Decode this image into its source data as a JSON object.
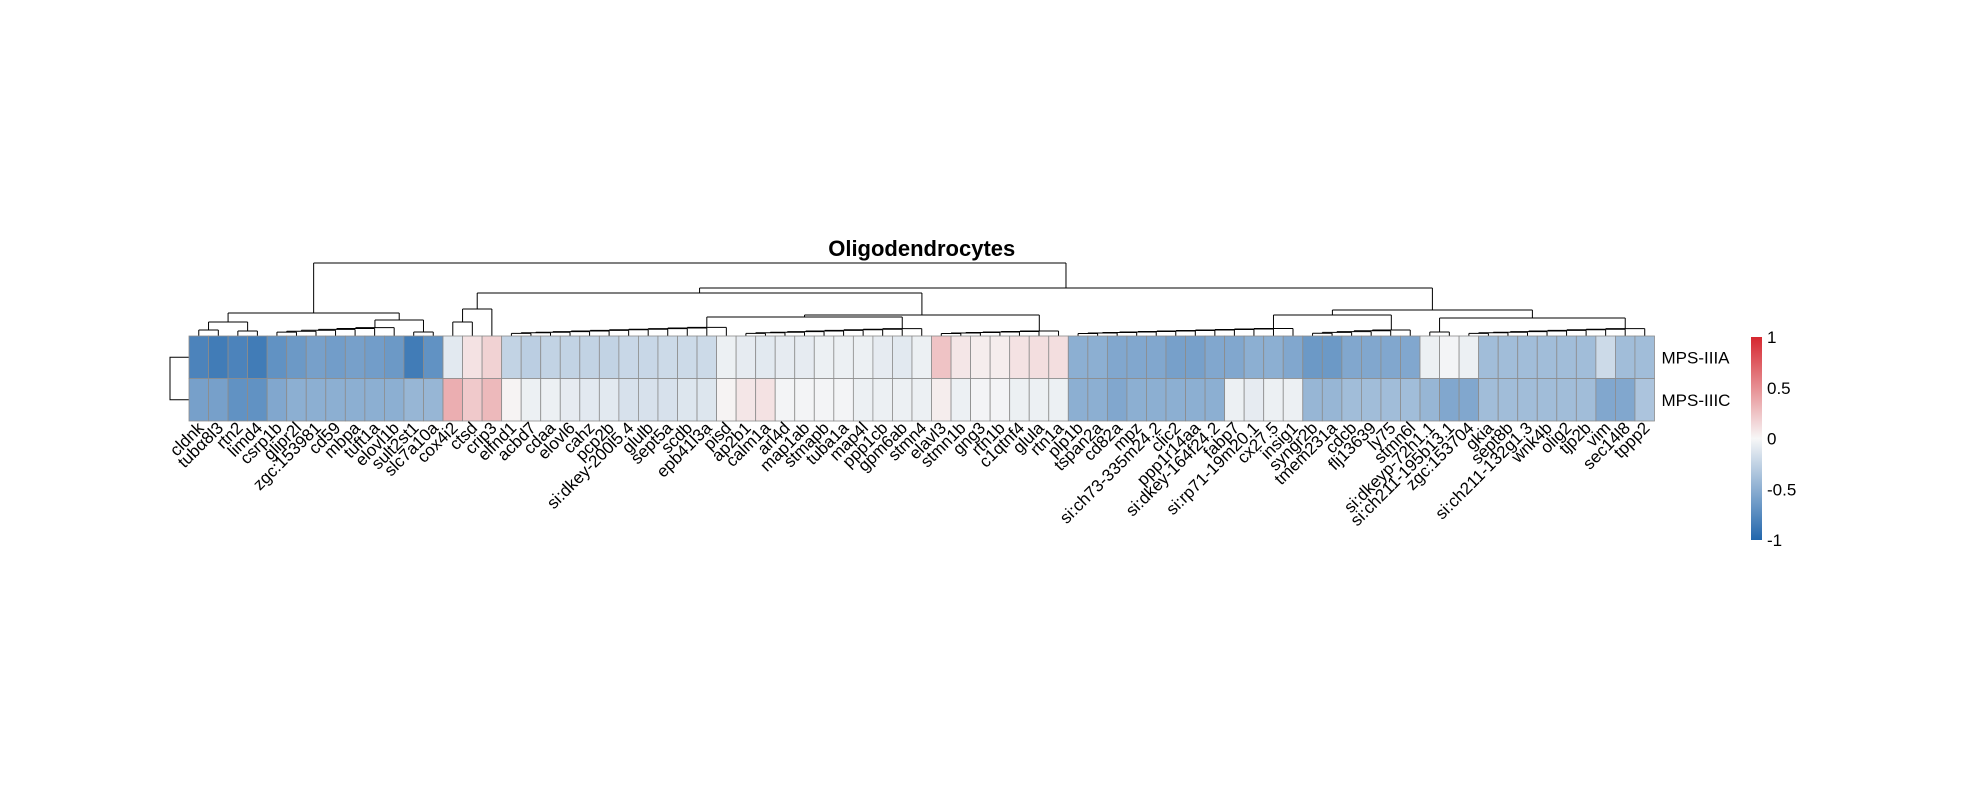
{
  "chart_data": {
    "type": "heatmap",
    "title": "Oligodendrocytes",
    "rows": [
      "MPS-IIIA",
      "MPS-IIIC"
    ],
    "columns": [
      "cldnk",
      "tubα8l3",
      "rtn2",
      "limd4",
      "csrp1b",
      "glipr2l",
      "zgc:153981",
      "cd59",
      "mbpa",
      "tuft1a",
      "elovl1b",
      "sult2st1",
      "slc7a10a",
      "cox4i2",
      "ctsd",
      "crip3",
      "elfnd1",
      "acbd7",
      "cdaa",
      "elovl6",
      "cahz",
      "pcp2b",
      "si:dkey-200l5.4",
      "glulb",
      "sept5a",
      "scdb",
      "epb41l3a",
      "pisd",
      "ap2b1",
      "calm1a",
      "arl4d",
      "map1ab",
      "stmapb",
      "tuba1a",
      "map4l",
      "ppp1cb",
      "gpm6ab",
      "stmn4",
      "elavl3",
      "stmn1b",
      "gng3",
      "rtn1b",
      "c1qtnf4",
      "glula",
      "rtn1a",
      "plp1b",
      "tspan2a",
      "cd82a",
      "mpz",
      "si:ch73-335m24.2",
      "clic2",
      "ppp1r14aa",
      "si:dkey-164f24.2",
      "fabp7",
      "si:rp71-19m20.1",
      "cx27.5",
      "insig1",
      "syngr2b",
      "tmem231a",
      "cdcb",
      "flj13639",
      "ly75",
      "stmn6l",
      "si:dkeyp-72h1.1",
      "si:ch211-195b13.1",
      "zgc:153704",
      "gkia",
      "sept8b",
      "si:ch211-132g1.3",
      "wnk4b",
      "olig2",
      "tjp2b",
      "vim",
      "sec14l8",
      "tppp2"
    ],
    "values": [
      [
        -0.8,
        -0.85,
        -0.8,
        -0.85,
        -0.7,
        -0.65,
        -0.6,
        -0.62,
        -0.6,
        -0.62,
        -0.65,
        -0.85,
        -0.7,
        -0.1,
        0.1,
        0.18,
        -0.25,
        -0.28,
        -0.25,
        -0.25,
        -0.25,
        -0.25,
        -0.22,
        -0.22,
        -0.2,
        -0.2,
        -0.2,
        -0.05,
        -0.08,
        -0.1,
        -0.08,
        -0.08,
        -0.05,
        -0.05,
        -0.05,
        -0.08,
        -0.1,
        -0.05,
        0.25,
        0.08,
        0.05,
        0.05,
        0.1,
        0.12,
        0.12,
        -0.5,
        -0.5,
        -0.55,
        -0.55,
        -0.55,
        -0.6,
        -0.6,
        -0.55,
        -0.55,
        -0.5,
        -0.5,
        -0.55,
        -0.65,
        -0.65,
        -0.55,
        -0.55,
        -0.55,
        -0.55,
        -0.05,
        -0.02,
        -0.05,
        -0.4,
        -0.4,
        -0.4,
        -0.4,
        -0.4,
        -0.4,
        -0.2,
        -0.4,
        -0.4
      ],
      [
        -0.6,
        -0.6,
        -0.7,
        -0.7,
        -0.55,
        -0.5,
        -0.5,
        -0.5,
        -0.5,
        -0.5,
        -0.5,
        -0.45,
        -0.45,
        0.35,
        0.22,
        0.3,
        0.02,
        -0.05,
        -0.05,
        -0.08,
        -0.1,
        -0.1,
        -0.15,
        -0.15,
        -0.15,
        -0.12,
        -0.12,
        0.02,
        0.08,
        0.1,
        -0.02,
        -0.02,
        -0.02,
        -0.02,
        -0.05,
        -0.05,
        -0.05,
        -0.05,
        0.05,
        -0.05,
        -0.02,
        -0.02,
        -0.05,
        -0.05,
        -0.05,
        -0.5,
        -0.5,
        -0.55,
        -0.5,
        -0.5,
        -0.5,
        -0.5,
        -0.5,
        -0.05,
        -0.08,
        -0.05,
        -0.05,
        -0.45,
        -0.45,
        -0.4,
        -0.4,
        -0.4,
        -0.4,
        -0.45,
        -0.55,
        -0.55,
        -0.4,
        -0.4,
        -0.4,
        -0.4,
        -0.4,
        -0.4,
        -0.55,
        -0.55,
        -0.35
      ]
    ],
    "color_scale": {
      "min": -1,
      "max": 1,
      "low": "#2166ac",
      "mid": "#f7f7f7",
      "high": "#d6272f"
    },
    "legend_ticks": [
      "1",
      "0.5",
      "0",
      "-0.5",
      "-1"
    ],
    "legend_placement": "right",
    "column_dendrogram": "top",
    "row_dendrogram": "left"
  }
}
